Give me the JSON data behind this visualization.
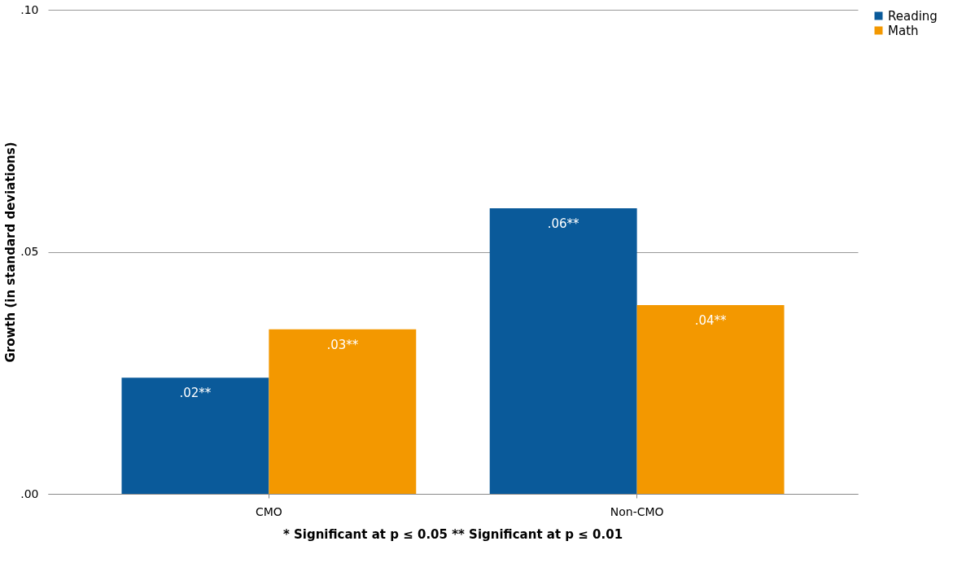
{
  "chart_data": {
    "type": "bar",
    "ylabel": "Growth (in standard deviations)",
    "categories": [
      "CMO",
      "Non-CMO"
    ],
    "series": [
      {
        "name": "Reading",
        "color": "#0a5a9a",
        "values": [
          0.024,
          0.059
        ],
        "value_labels": [
          ".02**",
          ".06**"
        ]
      },
      {
        "name": "Math",
        "color": "#f39800",
        "values": [
          0.034,
          0.039
        ],
        "value_labels": [
          ".03**",
          ".04**"
        ]
      }
    ],
    "ylim": [
      0,
      0.1
    ],
    "yticks": [
      {
        "value": 0,
        "label": ".00"
      },
      {
        "value": 0.05,
        "label": ".05"
      },
      {
        "value": 0.1,
        "label": ".10"
      }
    ],
    "grid": "y",
    "legend": "right",
    "annotations": [
      "* Significant  at p ≤ 0.05       ** Significant  at p ≤ 0.01"
    ]
  }
}
